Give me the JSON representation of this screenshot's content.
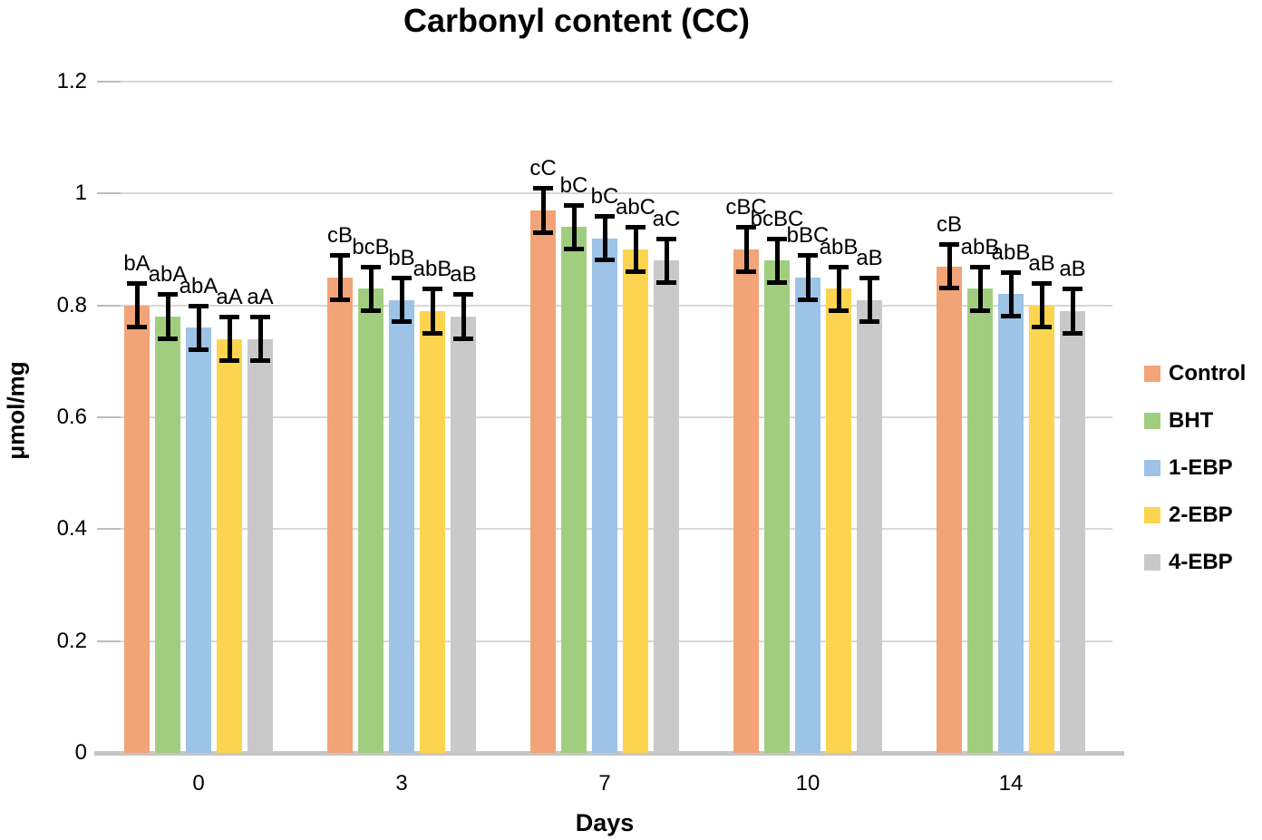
{
  "title": "Carbonyl content (CC)",
  "colors": {
    "background": "#FFFFFF",
    "gridline": "#D8D8D8",
    "grid_tick": "#BDBDBD",
    "axis_baseline": "#C6C6C6",
    "error_bar": "#000000",
    "text": "#000000"
  },
  "chart_data": {
    "type": "bar",
    "title": "Carbonyl content (CC)",
    "xlabel": "Days",
    "ylabel": "μmol/mg",
    "categories": [
      "0",
      "3",
      "7",
      "10",
      "14"
    ],
    "y_ticks": [
      0,
      0.2,
      0.4,
      0.6,
      0.8,
      1,
      1.2
    ],
    "y_tick_labels": [
      "0",
      "0.2",
      "0.4",
      "0.6",
      "0.8",
      "1",
      "1.2"
    ],
    "ylim": [
      0,
      1.2
    ],
    "grid": true,
    "legend_position": "right",
    "error_bar": 0.04,
    "series": [
      {
        "name": "Control",
        "color": "#F2A377",
        "values": [
          0.8,
          0.85,
          0.97,
          0.9,
          0.87
        ],
        "labels": [
          "bA",
          "cB",
          "cC",
          "cBC",
          "cB"
        ]
      },
      {
        "name": "BHT",
        "color": "#A0CE7E",
        "values": [
          0.78,
          0.83,
          0.94,
          0.88,
          0.83
        ],
        "labels": [
          "abA",
          "bcB",
          "bC",
          "bcBC",
          "abB"
        ]
      },
      {
        "name": "1-EBP",
        "color": "#9DC3E6",
        "values": [
          0.76,
          0.81,
          0.92,
          0.85,
          0.82
        ],
        "labels": [
          "abA",
          "bB",
          "bC",
          "bBC",
          "abB"
        ]
      },
      {
        "name": "2-EBP",
        "color": "#FDD44F",
        "values": [
          0.74,
          0.79,
          0.9,
          0.83,
          0.8
        ],
        "labels": [
          "aA",
          "abB",
          "abC",
          "abB",
          "aB"
        ]
      },
      {
        "name": "4-EBP",
        "color": "#C9C9C9",
        "values": [
          0.74,
          0.78,
          0.88,
          0.81,
          0.79
        ],
        "labels": [
          "aA",
          "aB",
          "aC",
          "aB",
          "aB"
        ]
      }
    ]
  }
}
